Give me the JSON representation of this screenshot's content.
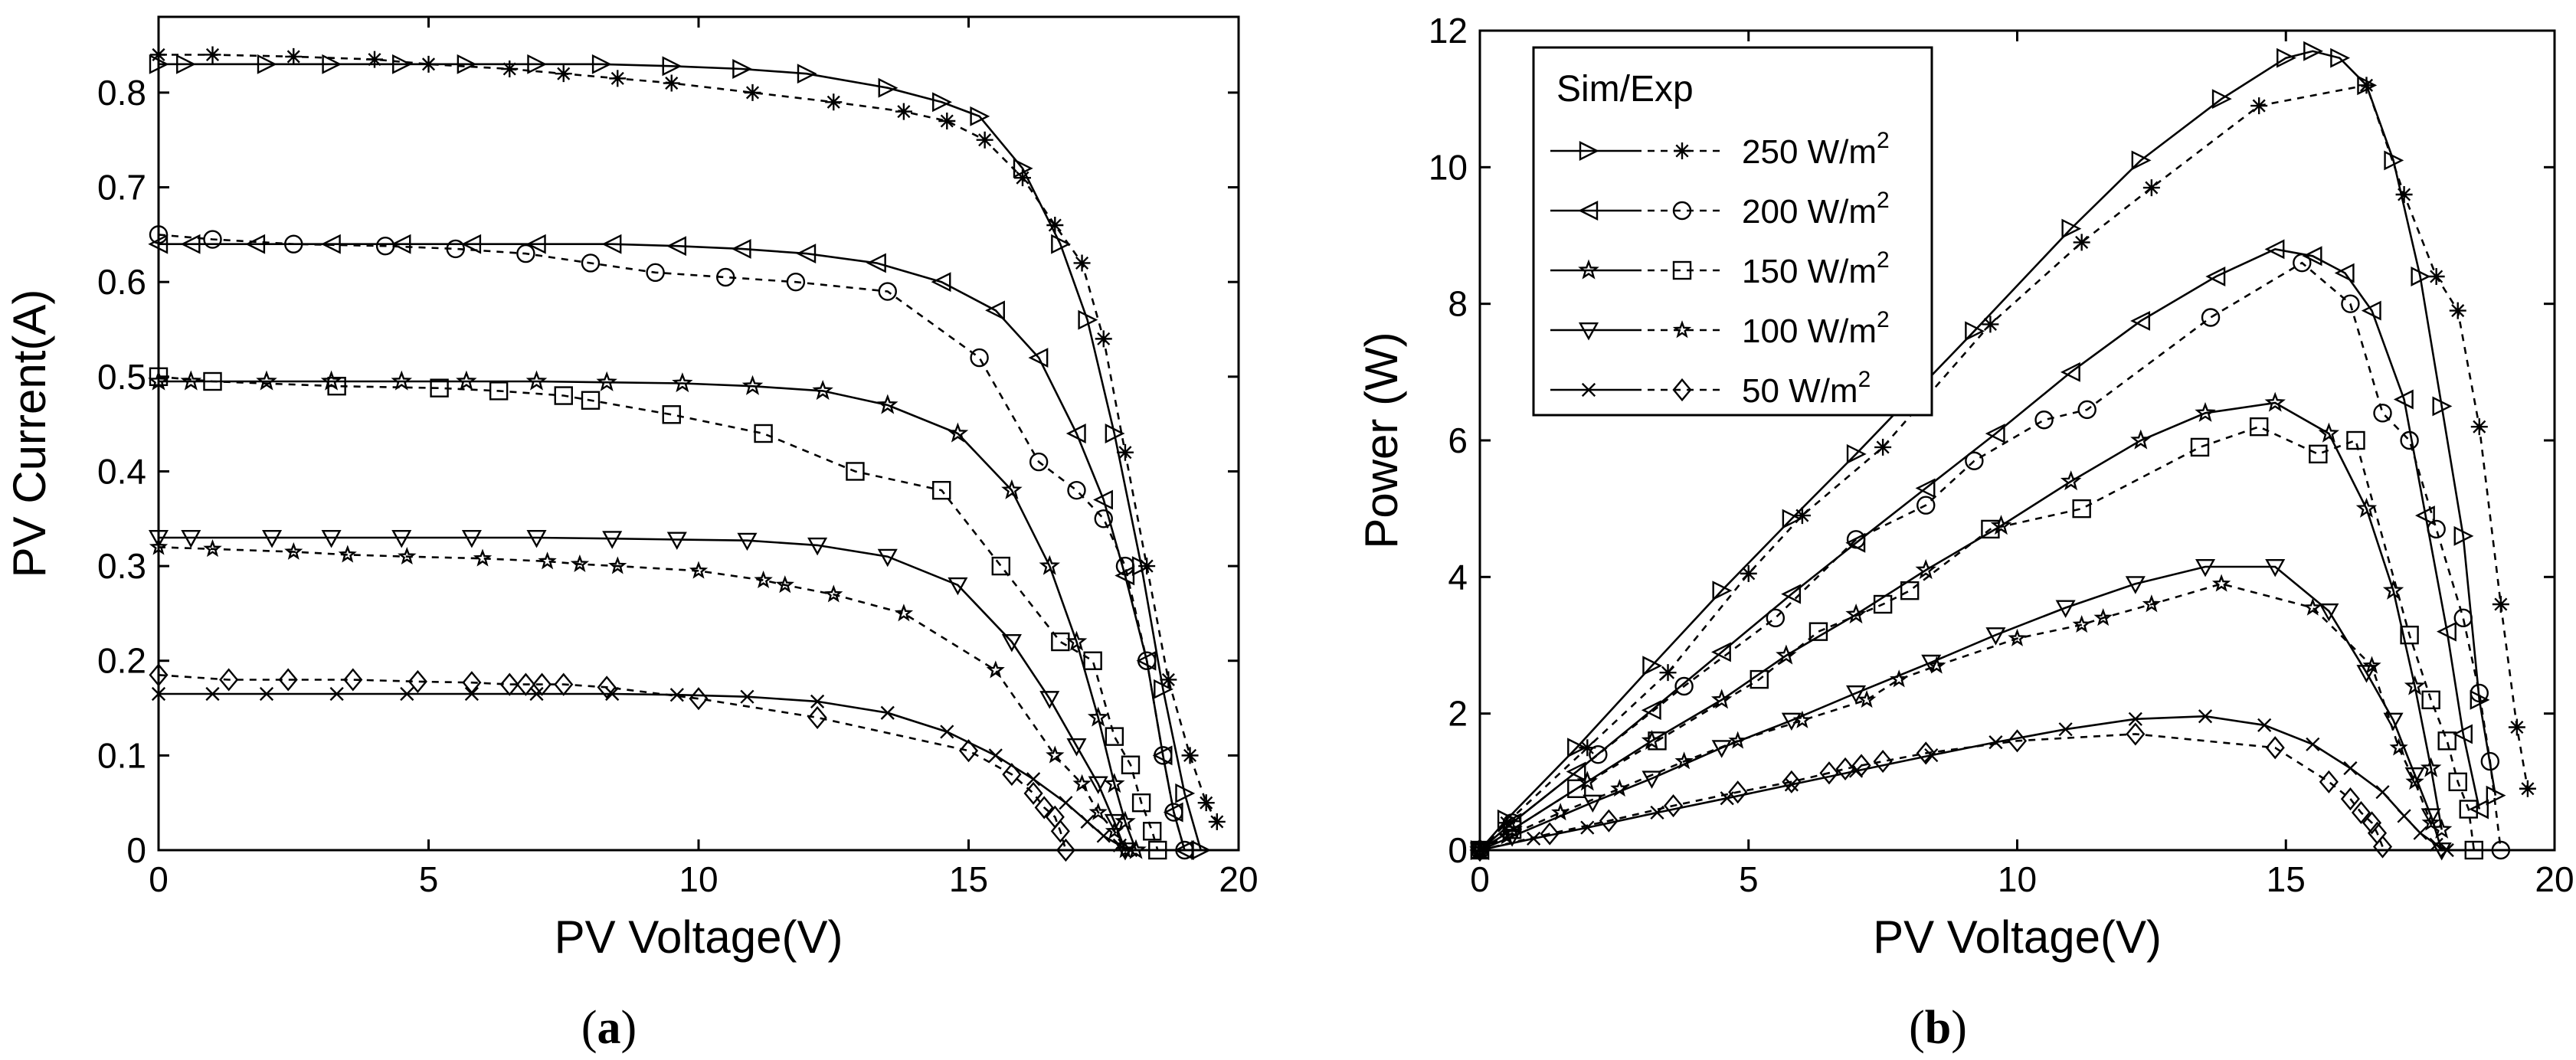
{
  "figure": {
    "caption_a": "a",
    "caption_b": "b"
  },
  "chart_data": [
    {
      "type": "line",
      "panel": "a",
      "xlabel": "PV Voltage(V)",
      "ylabel": "PV Current(A)",
      "xlim": [
        0,
        20
      ],
      "ylim": [
        0,
        0.88
      ],
      "xticks": [
        "0",
        "5",
        "10",
        "15",
        "20"
      ],
      "yticks": [
        "0",
        "0.1",
        "0.2",
        "0.3",
        "0.4",
        "0.5",
        "0.6",
        "0.7",
        "0.8"
      ],
      "grid": false,
      "series": [
        {
          "name": "250 W/m2",
          "kind": "sim",
          "marker": "tri-right",
          "x": [
            0,
            0.5,
            2,
            3.2,
            4.5,
            5.7,
            7,
            8.2,
            9.5,
            10.8,
            12,
            13.5,
            14.5,
            15.2,
            16,
            16.7,
            17.2,
            17.7,
            18.2,
            18.6,
            19.0,
            19.3
          ],
          "y": [
            0.83,
            0.83,
            0.83,
            0.83,
            0.83,
            0.83,
            0.83,
            0.83,
            0.828,
            0.825,
            0.82,
            0.805,
            0.79,
            0.775,
            0.72,
            0.64,
            0.56,
            0.44,
            0.3,
            0.17,
            0.06,
            0.0
          ]
        },
        {
          "name": "250 W/m2",
          "kind": "exp",
          "marker": "asterisk",
          "x": [
            0,
            1,
            2.5,
            4,
            5,
            6.5,
            7.5,
            8.5,
            9.5,
            11,
            12.5,
            13.8,
            14.6,
            15.3,
            16,
            16.6,
            17.1,
            17.5,
            17.9,
            18.3,
            18.7,
            19.1,
            19.4,
            19.6
          ],
          "y": [
            0.84,
            0.84,
            0.838,
            0.835,
            0.83,
            0.825,
            0.82,
            0.815,
            0.81,
            0.8,
            0.79,
            0.78,
            0.77,
            0.75,
            0.71,
            0.66,
            0.62,
            0.54,
            0.42,
            0.3,
            0.18,
            0.1,
            0.05,
            0.03
          ]
        },
        {
          "name": "200 W/m2",
          "kind": "sim",
          "marker": "tri-left",
          "x": [
            0,
            0.6,
            1.8,
            3.2,
            4.5,
            5.8,
            7,
            8.4,
            9.6,
            10.8,
            12,
            13.3,
            14.5,
            15.5,
            16.3,
            17,
            17.5,
            17.9,
            18.3,
            18.6,
            18.8,
            19.0
          ],
          "y": [
            0.64,
            0.64,
            0.64,
            0.64,
            0.64,
            0.64,
            0.64,
            0.64,
            0.638,
            0.635,
            0.63,
            0.62,
            0.6,
            0.57,
            0.52,
            0.44,
            0.37,
            0.29,
            0.2,
            0.1,
            0.04,
            0.0
          ]
        },
        {
          "name": "200 W/m2",
          "kind": "exp",
          "marker": "circle",
          "x": [
            0,
            1,
            2.5,
            4.2,
            5.5,
            6.8,
            8,
            9.2,
            10.5,
            11.8,
            13.5,
            15.2,
            16.3,
            17,
            17.5,
            17.9,
            18.3,
            18.6,
            18.8,
            19.0
          ],
          "y": [
            0.65,
            0.645,
            0.64,
            0.638,
            0.635,
            0.63,
            0.62,
            0.61,
            0.605,
            0.6,
            0.59,
            0.52,
            0.41,
            0.38,
            0.35,
            0.3,
            0.2,
            0.1,
            0.04,
            0.0
          ]
        },
        {
          "name": "150 W/m2",
          "kind": "sim",
          "marker": "star",
          "x": [
            0,
            0.6,
            2,
            3.2,
            4.5,
            5.7,
            7,
            8.3,
            9.7,
            11,
            12.3,
            13.5,
            14.8,
            15.8,
            16.5,
            17.0,
            17.4,
            17.7,
            17.9,
            18.1
          ],
          "y": [
            0.495,
            0.495,
            0.495,
            0.495,
            0.495,
            0.495,
            0.495,
            0.494,
            0.493,
            0.49,
            0.485,
            0.47,
            0.44,
            0.38,
            0.3,
            0.22,
            0.14,
            0.07,
            0.03,
            0.0
          ]
        },
        {
          "name": "150 W/m2",
          "kind": "exp",
          "marker": "square",
          "x": [
            0,
            1,
            3.3,
            5.2,
            6.3,
            7.5,
            8,
            9.5,
            11.2,
            12.9,
            14.5,
            15.6,
            16.7,
            17.3,
            17.7,
            18.0,
            18.2,
            18.4,
            18.5
          ],
          "y": [
            0.5,
            0.495,
            0.49,
            0.488,
            0.485,
            0.48,
            0.475,
            0.46,
            0.44,
            0.4,
            0.38,
            0.3,
            0.22,
            0.2,
            0.12,
            0.09,
            0.05,
            0.02,
            0.0
          ]
        },
        {
          "name": "100 W/m2",
          "kind": "sim",
          "marker": "tri-down",
          "x": [
            0,
            0.6,
            2.1,
            3.2,
            4.5,
            5.8,
            7,
            8.4,
            9.6,
            10.9,
            12.2,
            13.5,
            14.8,
            15.8,
            16.5,
            17.0,
            17.4,
            17.7,
            17.9
          ],
          "y": [
            0.33,
            0.33,
            0.33,
            0.33,
            0.33,
            0.33,
            0.33,
            0.329,
            0.328,
            0.327,
            0.322,
            0.31,
            0.28,
            0.22,
            0.16,
            0.11,
            0.07,
            0.03,
            0.0
          ]
        },
        {
          "name": "100 W/m2",
          "kind": "exp",
          "marker": "star-small",
          "x": [
            0,
            1,
            2.5,
            3.5,
            4.6,
            6,
            7.2,
            7.8,
            8.5,
            10,
            11.2,
            11.6,
            12.5,
            13.8,
            15.5,
            16.6,
            17.1,
            17.4,
            17.7,
            17.9
          ],
          "y": [
            0.32,
            0.318,
            0.315,
            0.312,
            0.31,
            0.308,
            0.305,
            0.302,
            0.3,
            0.295,
            0.285,
            0.28,
            0.27,
            0.25,
            0.19,
            0.1,
            0.07,
            0.04,
            0.02,
            0.0
          ]
        },
        {
          "name": "50 W/m2",
          "kind": "sim",
          "marker": "cross",
          "x": [
            0,
            1,
            2,
            3.3,
            4.6,
            5.8,
            7,
            8.4,
            9.6,
            10.9,
            12.2,
            13.5,
            14.6,
            15.5,
            16.2,
            16.8,
            17.2,
            17.5,
            17.8,
            18.0
          ],
          "y": [
            0.165,
            0.165,
            0.165,
            0.165,
            0.165,
            0.165,
            0.165,
            0.165,
            0.164,
            0.162,
            0.157,
            0.145,
            0.125,
            0.1,
            0.075,
            0.05,
            0.03,
            0.015,
            0.005,
            0.0
          ]
        },
        {
          "name": "50 W/m2",
          "kind": "exp",
          "marker": "diamond",
          "x": [
            0,
            1.3,
            2.4,
            3.6,
            4.8,
            5.8,
            6.5,
            6.8,
            7.1,
            7.5,
            8.3,
            10,
            12.2,
            15,
            15.8,
            16.2,
            16.4,
            16.6,
            16.7,
            16.8
          ],
          "y": [
            0.185,
            0.18,
            0.18,
            0.18,
            0.178,
            0.177,
            0.175,
            0.175,
            0.175,
            0.175,
            0.172,
            0.16,
            0.14,
            0.105,
            0.08,
            0.06,
            0.045,
            0.035,
            0.02,
            0.0
          ]
        }
      ]
    },
    {
      "type": "line",
      "panel": "b",
      "xlabel": "PV Voltage(V)",
      "ylabel": "Power (W)",
      "xlim": [
        0,
        20
      ],
      "ylim": [
        0,
        12
      ],
      "xticks": [
        "0",
        "5",
        "10",
        "15",
        "20"
      ],
      "yticks": [
        "0",
        "2",
        "4",
        "6",
        "8",
        "10",
        "12"
      ],
      "grid": false,
      "legend": {
        "title": "Sim/Exp",
        "position": "top-left",
        "entries": [
          {
            "label": "250 W/m",
            "sup": "2",
            "sim_marker": "tri-right",
            "exp_marker": "asterisk"
          },
          {
            "label": "200 W/m",
            "sup": "2",
            "sim_marker": "tri-left",
            "exp_marker": "circle"
          },
          {
            "label": "150 W/m",
            "sup": "2",
            "sim_marker": "star",
            "exp_marker": "square"
          },
          {
            "label": "100 W/m",
            "sup": "2",
            "sim_marker": "tri-down",
            "exp_marker": "star-small"
          },
          {
            "label": "50 W/m",
            "sup": "2",
            "sim_marker": "cross",
            "exp_marker": "diamond"
          }
        ]
      },
      "series": [
        {
          "name": "250 W/m2",
          "kind": "sim",
          "marker": "tri-right",
          "x": [
            0,
            0.5,
            1.8,
            3.2,
            4.5,
            5.8,
            7,
            9.2,
            11,
            12.3,
            13.8,
            15.0,
            15.5,
            16.0,
            16.5,
            17.0,
            17.5,
            17.9,
            18.3,
            18.6,
            18.9
          ],
          "y": [
            0,
            0.45,
            1.5,
            2.7,
            3.8,
            4.85,
            5.8,
            7.6,
            9.1,
            10.1,
            11.0,
            11.6,
            11.7,
            11.6,
            11.2,
            10.1,
            8.4,
            6.5,
            4.6,
            2.2,
            0.8
          ]
        },
        {
          "name": "250 W/m2",
          "kind": "exp",
          "marker": "asterisk",
          "x": [
            0,
            0.5,
            2,
            3.5,
            5,
            6,
            7.5,
            9.5,
            11.2,
            12.5,
            14.5,
            16.5,
            17.2,
            17.8,
            18.2,
            18.6,
            19.0,
            19.3,
            19.5
          ],
          "y": [
            0,
            0.4,
            1.5,
            2.6,
            4.05,
            4.9,
            5.9,
            7.7,
            8.9,
            9.7,
            10.9,
            11.2,
            9.6,
            8.4,
            7.9,
            6.2,
            3.6,
            1.8,
            0.9
          ]
        },
        {
          "name": "200 W/m2",
          "kind": "sim",
          "marker": "tri-left",
          "x": [
            0,
            0.6,
            1.8,
            3.2,
            4.5,
            5.8,
            7,
            8.3,
            9.6,
            11,
            12.3,
            13.7,
            14.8,
            15.5,
            16.1,
            16.6,
            17.2,
            17.6,
            18.0,
            18.3,
            18.6
          ],
          "y": [
            0,
            0.4,
            1.15,
            2.05,
            2.9,
            3.75,
            4.5,
            5.3,
            6.1,
            7.0,
            7.75,
            8.4,
            8.8,
            8.7,
            8.45,
            7.9,
            6.6,
            4.9,
            3.2,
            1.7,
            0.6
          ]
        },
        {
          "name": "200 W/m2",
          "kind": "exp",
          "marker": "circle",
          "x": [
            0,
            0.6,
            2.2,
            3.8,
            5.5,
            7,
            8.3,
            9.2,
            10.5,
            11.3,
            13.6,
            15.3,
            16.2,
            16.8,
            17.3,
            17.8,
            18.3,
            18.6,
            18.8,
            19.0
          ],
          "y": [
            0,
            0.4,
            1.4,
            2.4,
            3.4,
            4.55,
            5.05,
            5.7,
            6.3,
            6.45,
            7.8,
            8.6,
            8.0,
            6.4,
            6.0,
            4.7,
            3.4,
            2.3,
            1.3,
            0.0
          ]
        },
        {
          "name": "150 W/m2",
          "kind": "sim",
          "marker": "star",
          "x": [
            0,
            0.6,
            2,
            3.2,
            4.5,
            5.7,
            7,
            8.3,
            9.7,
            11,
            12.3,
            13.5,
            14.8,
            15.8,
            16.5,
            17.0,
            17.4,
            17.7,
            17.9
          ],
          "y": [
            0,
            0.3,
            1.0,
            1.6,
            2.2,
            2.85,
            3.45,
            4.1,
            4.75,
            5.4,
            6.0,
            6.4,
            6.55,
            6.1,
            5.0,
            3.8,
            2.4,
            1.2,
            0.3
          ]
        },
        {
          "name": "150 W/m2",
          "kind": "exp",
          "marker": "square",
          "x": [
            0,
            0.6,
            1.8,
            3.3,
            5.2,
            6.3,
            7.5,
            8,
            9.5,
            11.2,
            13.4,
            14.5,
            15.6,
            16.3,
            17.3,
            17.7,
            18.0,
            18.2,
            18.4,
            18.5
          ],
          "y": [
            0,
            0.3,
            0.9,
            1.6,
            2.5,
            3.2,
            3.6,
            3.8,
            4.7,
            5.0,
            5.9,
            6.2,
            5.8,
            6.0,
            3.15,
            2.2,
            1.6,
            1.0,
            0.6,
            0.0
          ]
        },
        {
          "name": "100 W/m2",
          "kind": "sim",
          "marker": "tri-down",
          "x": [
            0,
            0.6,
            2.1,
            3.2,
            4.5,
            5.8,
            7,
            8.4,
            9.6,
            10.9,
            12.2,
            13.5,
            14.8,
            15.8,
            16.5,
            17.0,
            17.4,
            17.7,
            17.9
          ],
          "y": [
            0,
            0.2,
            0.7,
            1.05,
            1.5,
            1.9,
            2.3,
            2.75,
            3.15,
            3.55,
            3.9,
            4.15,
            4.15,
            3.5,
            2.6,
            1.9,
            1.1,
            0.5,
            0.0
          ]
        },
        {
          "name": "100 W/m2",
          "kind": "exp",
          "marker": "star-small",
          "x": [
            0,
            0.5,
            1.5,
            2.6,
            3.8,
            4.8,
            6,
            7.2,
            7.8,
            8.5,
            10,
            11.2,
            11.6,
            12.5,
            13.8,
            15.5,
            16.6,
            17.1,
            17.4,
            17.7
          ],
          "y": [
            0,
            0.2,
            0.55,
            0.9,
            1.3,
            1.6,
            1.9,
            2.2,
            2.5,
            2.7,
            3.1,
            3.3,
            3.4,
            3.6,
            3.9,
            3.55,
            2.7,
            1.5,
            1.0,
            0.4
          ]
        },
        {
          "name": "50 W/m2",
          "kind": "sim",
          "marker": "cross",
          "x": [
            0,
            1,
            2,
            3.3,
            4.6,
            5.8,
            7,
            8.4,
            9.6,
            10.9,
            12.2,
            13.5,
            14.6,
            15.5,
            16.2,
            16.8,
            17.2,
            17.5,
            17.8,
            18.0
          ],
          "y": [
            0,
            0.17,
            0.33,
            0.55,
            0.76,
            0.96,
            1.16,
            1.39,
            1.58,
            1.77,
            1.92,
            1.96,
            1.83,
            1.55,
            1.2,
            0.85,
            0.5,
            0.25,
            0.08,
            0.0
          ]
        },
        {
          "name": "50 W/m2",
          "kind": "exp",
          "marker": "diamond",
          "x": [
            0,
            1.3,
            2.4,
            3.6,
            4.8,
            5.8,
            6.5,
            6.8,
            7.1,
            7.5,
            8.3,
            10,
            12.2,
            14.8,
            15.8,
            16.2,
            16.4,
            16.6,
            16.7,
            16.8
          ],
          "y": [
            0,
            0.24,
            0.43,
            0.65,
            0.85,
            1.0,
            1.13,
            1.19,
            1.24,
            1.3,
            1.42,
            1.6,
            1.7,
            1.5,
            1.0,
            0.75,
            0.55,
            0.4,
            0.25,
            0.05
          ]
        }
      ]
    }
  ]
}
